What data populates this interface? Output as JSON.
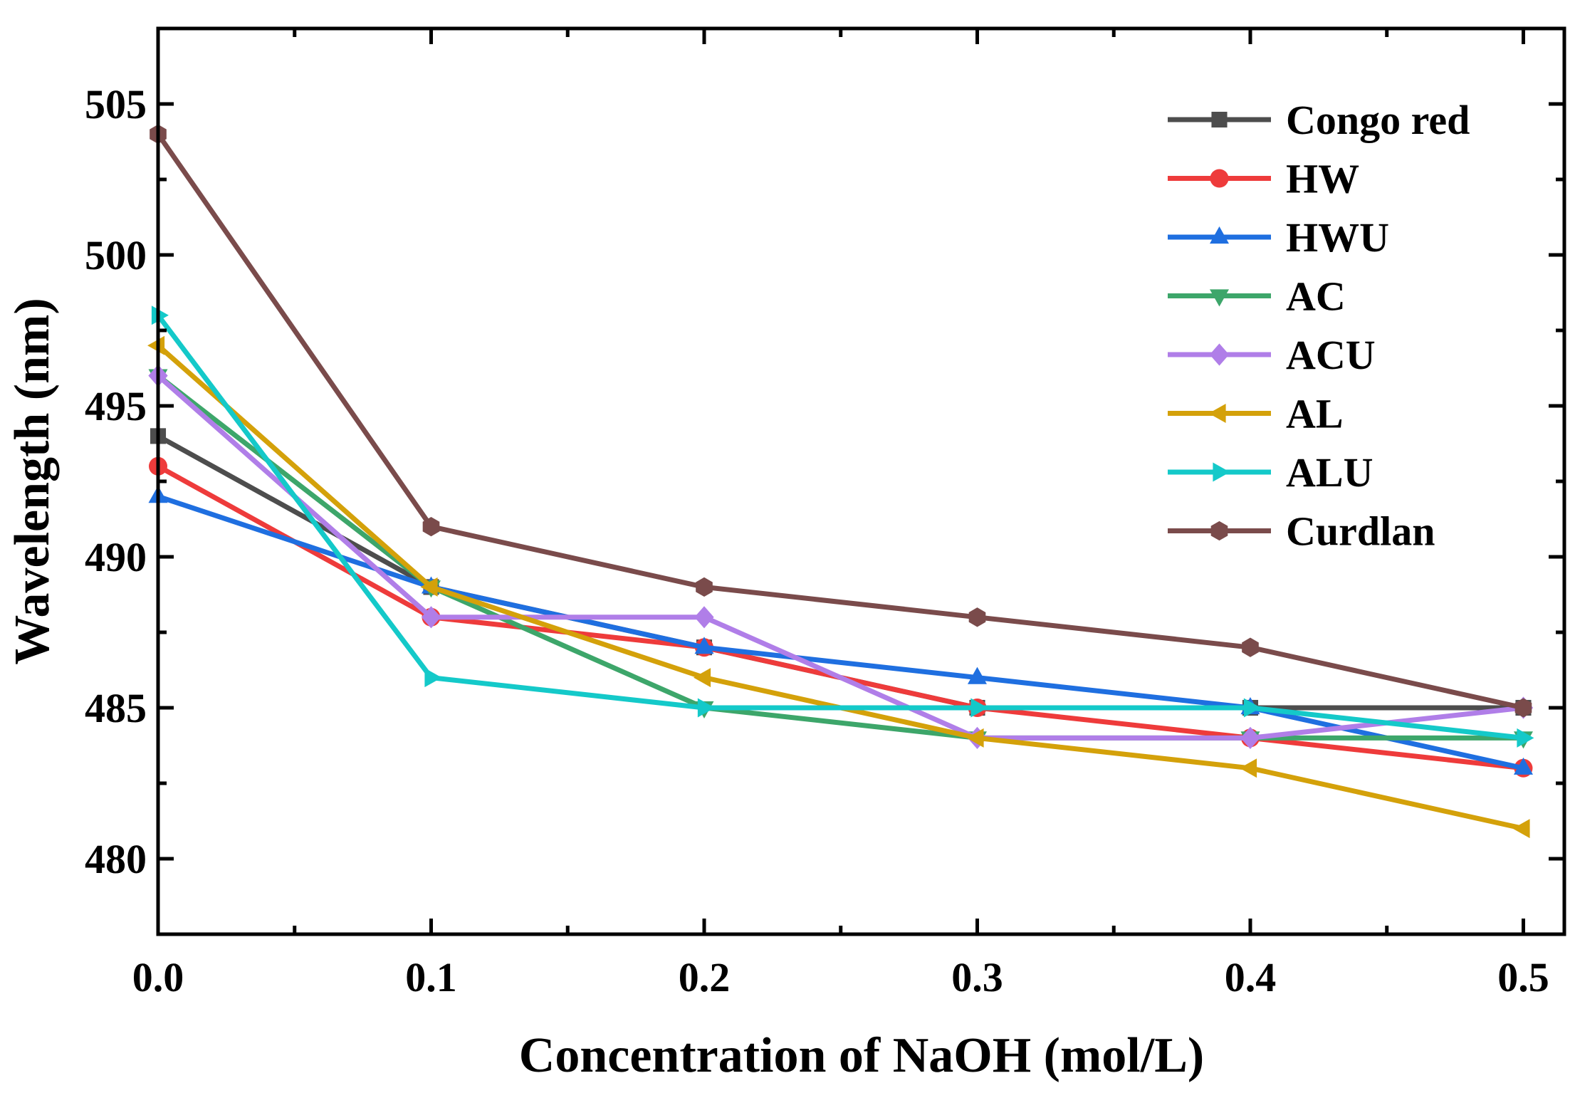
{
  "chart_data": {
    "type": "line",
    "title": "",
    "xlabel": "Concentration of NaOH (mol/L)",
    "ylabel": "Wavelength (nm)",
    "x": [
      0.0,
      0.1,
      0.2,
      0.3,
      0.4,
      0.5
    ],
    "xlim": [
      0.0,
      0.515
    ],
    "ylim": [
      477.5,
      507.5
    ],
    "xticks": [
      0.0,
      0.1,
      0.2,
      0.3,
      0.4,
      0.5
    ],
    "xtick_labels": [
      "0.0",
      "0.1",
      "0.2",
      "0.3",
      "0.4",
      "0.5"
    ],
    "yticks": [
      480,
      485,
      490,
      495,
      500,
      505
    ],
    "ytick_labels": [
      "480",
      "485",
      "490",
      "495",
      "500",
      "505"
    ],
    "grid": false,
    "legend_position": "top-right",
    "series": [
      {
        "name": "Congo red",
        "color": "#4d4d4d",
        "marker": "square",
        "values": [
          494,
          489,
          487,
          485,
          485,
          485
        ]
      },
      {
        "name": "HW",
        "color": "#ee3b3b",
        "marker": "circle",
        "values": [
          493,
          488,
          487,
          485,
          484,
          483
        ]
      },
      {
        "name": "HWU",
        "color": "#1f6fe0",
        "marker": "triangle-up",
        "values": [
          492,
          489,
          487,
          486,
          485,
          483
        ]
      },
      {
        "name": "AC",
        "color": "#3da66a",
        "marker": "triangle-down",
        "values": [
          496,
          489,
          485,
          484,
          484,
          484
        ]
      },
      {
        "name": "ACU",
        "color": "#b07ee8",
        "marker": "diamond",
        "values": [
          496,
          488,
          488,
          484,
          484,
          485
        ]
      },
      {
        "name": "AL",
        "color": "#d4a10a",
        "marker": "triangle-left",
        "values": [
          497,
          489,
          486,
          484,
          483,
          481
        ]
      },
      {
        "name": "ALU",
        "color": "#14c9c9",
        "marker": "triangle-right",
        "values": [
          498,
          486,
          485,
          485,
          485,
          484
        ]
      },
      {
        "name": "Curdlan",
        "color": "#7a4b4b",
        "marker": "hexagon",
        "values": [
          504,
          491,
          489,
          488,
          487,
          485
        ]
      }
    ]
  }
}
